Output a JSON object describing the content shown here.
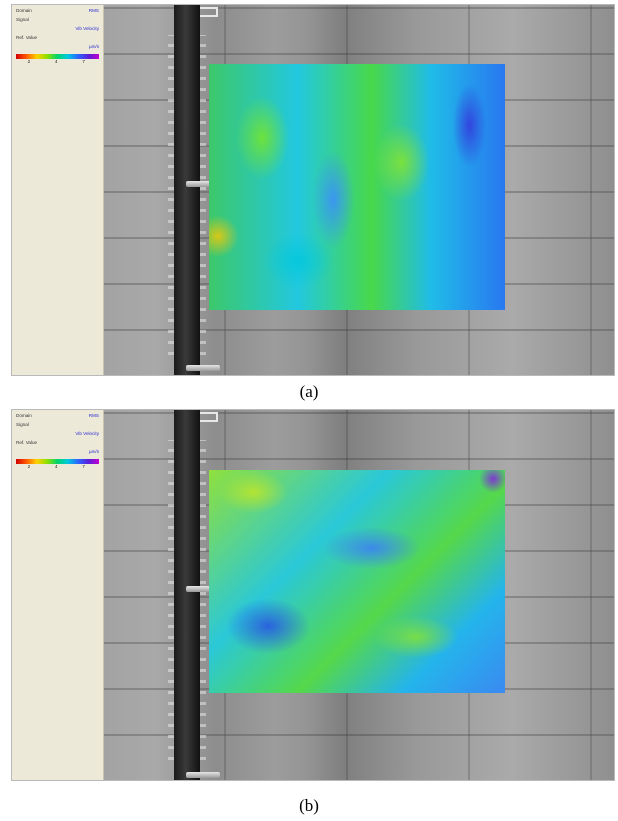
{
  "panels": [
    {
      "caption": "(a)",
      "settings": {
        "domain_label": "Domain",
        "domain_value": "RMS",
        "signal_label": "Signal",
        "signal_value": "Vib Velocity",
        "unit_label": "Ref. Value",
        "unit_value": "µm/s",
        "colorbar_ticks": [
          "2",
          "4",
          "7"
        ]
      }
    },
    {
      "caption": "(b)",
      "settings": {
        "domain_label": "Domain",
        "domain_value": "RMS",
        "signal_label": "Signal",
        "signal_value": "Vib Velocity",
        "unit_label": "Ref. Value",
        "unit_value": "µm/s",
        "colorbar_ticks": [
          "2",
          "4",
          "7"
        ]
      }
    }
  ],
  "colors": {
    "panel_bg": "#ece9d8",
    "value_text": "#2a2ad0",
    "colormap": [
      "#d10000",
      "#ff5a00",
      "#ffd000",
      "#8ee000",
      "#00d46c",
      "#00c8e0",
      "#2c64ff",
      "#5a1fd8",
      "#c000d0"
    ]
  }
}
